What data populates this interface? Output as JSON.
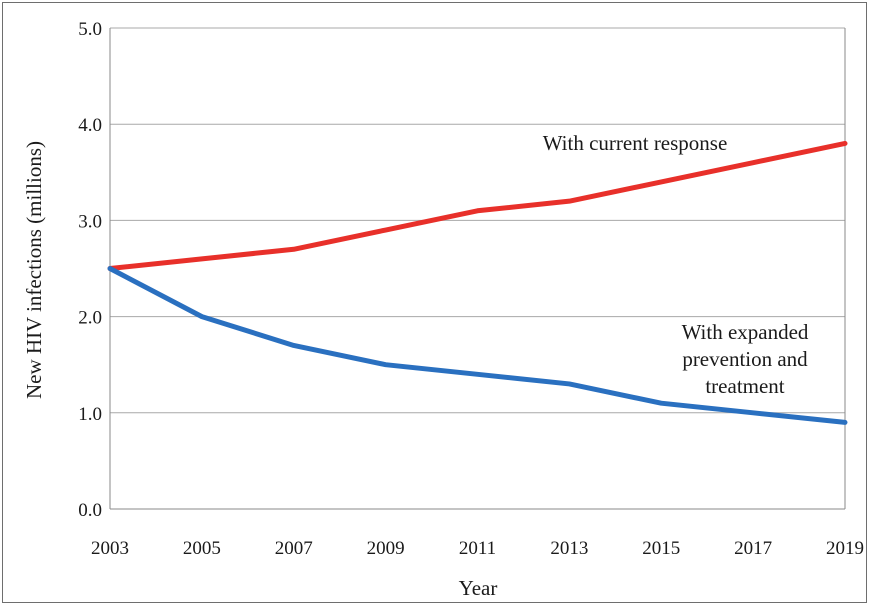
{
  "chart_data": {
    "type": "line",
    "xlabel": "Year",
    "ylabel": "New HIV infections  (millions)",
    "x": [
      2003,
      2005,
      2007,
      2009,
      2011,
      2013,
      2015,
      2017,
      2019
    ],
    "xlim": [
      2003,
      2019
    ],
    "ylim": [
      0,
      5
    ],
    "yticks": [
      "0.0",
      "1.0",
      "2.0",
      "3.0",
      "4.0",
      "5.0"
    ],
    "xticks": [
      "2003",
      "2005",
      "2007",
      "2009",
      "2011",
      "2013",
      "2015",
      "2017",
      "2019"
    ],
    "grid": true,
    "series": [
      {
        "values": [
          2.5,
          2.6,
          2.7,
          2.9,
          3.1,
          3.2,
          3.4,
          3.6,
          3.8
        ],
        "color": "#e8302a"
      },
      {
        "values": [
          2.5,
          2.0,
          1.7,
          1.5,
          1.4,
          1.3,
          1.1,
          1.0,
          0.9
        ],
        "color": "#2a70c0"
      }
    ],
    "annotations": [
      {
        "id": "current",
        "lines": [
          "With current response"
        ]
      },
      {
        "id": "expanded",
        "lines": [
          "With expanded",
          "prevention and",
          "treatment"
        ]
      }
    ]
  }
}
